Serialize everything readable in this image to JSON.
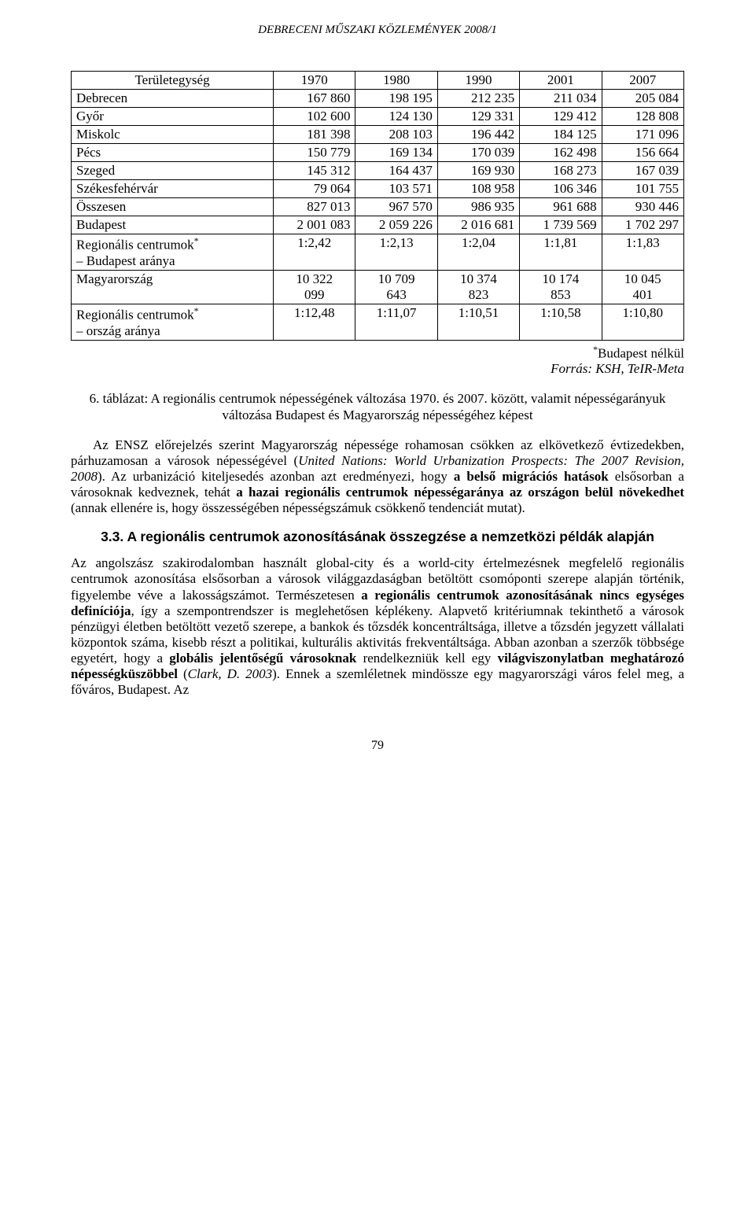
{
  "doc_header": "DEBRECENI MŰSZAKI KÖZLEMÉNYEK 2008/1",
  "table": {
    "columns": [
      "Területegység",
      "1970",
      "1980",
      "1990",
      "2001",
      "2007"
    ],
    "rows": [
      {
        "label": "Debrecen",
        "vals": [
          "167 860",
          "198 195",
          "212 235",
          "211 034",
          "205 084"
        ],
        "align": "num"
      },
      {
        "label": "Győr",
        "vals": [
          "102 600",
          "124 130",
          "129 331",
          "129 412",
          "128 808"
        ],
        "align": "num"
      },
      {
        "label": "Miskolc",
        "vals": [
          "181 398",
          "208 103",
          "196 442",
          "184 125",
          "171 096"
        ],
        "align": "num"
      },
      {
        "label": "Pécs",
        "vals": [
          "150 779",
          "169 134",
          "170 039",
          "162 498",
          "156 664"
        ],
        "align": "num"
      },
      {
        "label": "Szeged",
        "vals": [
          "145 312",
          "164 437",
          "169 930",
          "168 273",
          "167 039"
        ],
        "align": "num"
      },
      {
        "label": "Székesfehérvár",
        "vals": [
          "79 064",
          "103 571",
          "108 958",
          "106 346",
          "101 755"
        ],
        "align": "num"
      },
      {
        "label": "Összesen",
        "vals": [
          "827 013",
          "967 570",
          "986 935",
          "961 688",
          "930 446"
        ],
        "align": "num"
      },
      {
        "label": "Budapest",
        "vals": [
          "2 001 083",
          "2 059 226",
          "2 016 681",
          "1 739 569",
          "1 702 297"
        ],
        "align": "num"
      },
      {
        "label": "Regionális centrumok* – Budapest aránya",
        "sup": true,
        "vals": [
          "1:2,42",
          "1:2,13",
          "1:2,04",
          "1:1,81",
          "1:1,83"
        ],
        "align": "center"
      },
      {
        "label": "Magyarország",
        "vals": [
          "10 322 099",
          "10 709 643",
          "10 374 823",
          "10 174 853",
          "10 045 401"
        ],
        "align": "num",
        "wrap": true
      },
      {
        "label": "Regionális centrumok* – ország aránya",
        "sup": true,
        "vals": [
          "1:12,48",
          "1:11,07",
          "1:10,51",
          "1:10,58",
          "1:10,80"
        ],
        "align": "center"
      }
    ],
    "footnote1_sup": "*",
    "footnote1": "Budapest nélkül",
    "footnote2": "Forrás: KSH, TeIR-Meta"
  },
  "caption": "6. táblázat: A regionális centrumok népességének változása 1970. és 2007. között, valamit népességarányuk változása Budapest és Magyarország népességéhez képest",
  "para1_html": "Az ENSZ előrejelzés szerint Magyarország népessége rohamosan csökken az elkövetkező évtizedekben, párhuzamosan a városok népességével (<i>United Nations: World Urbanization Prospects: The 2007 Revision, 2008</i>). Az urbanizáció kiteljesedés azonban azt eredményezi, hogy <b>a belső migrációs hatások</b> elsősorban a városoknak kedveznek, tehát <b>a hazai regionális centrumok népességaránya az országon belül növekedhet</b> (annak ellenére is, hogy összességében népességszámuk csökkenő tendenciát mutat).",
  "section_heading": "3.3. A regionális centrumok azonosításának összegzése a nemzetközi példák alapján",
  "para2_html": "Az angolszász szakirodalomban használt global-city és a world-city értelmezésnek megfelelő regionális centrumok azonosítása elsősorban a városok világgazdaságban betöltött csomóponti szerepe alapján történik, figyelembe véve a lakosságszámot. Természetesen <b>a regionális centrumok azonosításának nincs egységes definíciója</b>, így a szempontrendszer is meglehetősen képlékeny. Alapvető kritériumnak tekinthető a városok pénzügyi életben betöltött vezető szerepe, a bankok és tőzsdék koncentráltsága, illetve a tőzsdén jegyzett vállalati központok száma, kisebb részt a politikai, kulturális aktivitás frekventáltsága. Abban azonban a szerzők többsége egyetért, hogy a <b>globális jelentőségű városoknak</b> rendelkezniük kell egy <b>világviszonylatban meghatározó népességküszöbbel</b> (<i>Clark, D. 2003</i>). Ennek a szemléletnek mindössze egy magyarországi város felel meg, a főváros, Budapest. Az",
  "page_number": "79"
}
